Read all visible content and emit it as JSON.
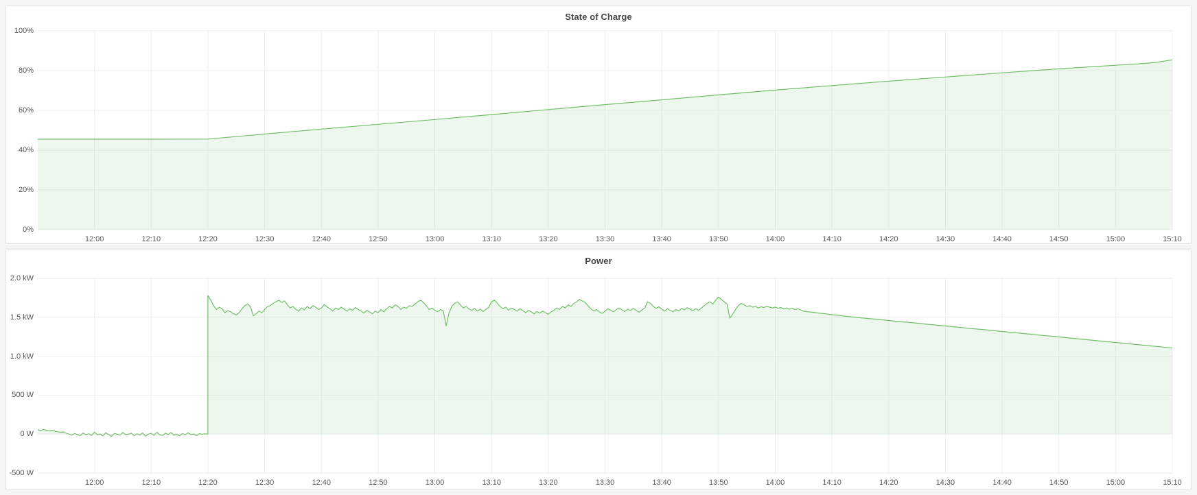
{
  "colors": {
    "page_background": "#f4f5f5",
    "panel_background": "#ffffff",
    "panel_border": "#e0e3e8",
    "grid_line": "rgba(0,10,40,0.07)",
    "axis_text": "#55575c",
    "title_text": "#44484d",
    "series_green": "#73bf69"
  },
  "chart_data": [
    {
      "type": "area",
      "title": "State of Charge",
      "legend": "none",
      "grid": true,
      "x_domain": [
        "11:50",
        "15:10"
      ],
      "x_ticks": [
        "12:00",
        "12:10",
        "12:20",
        "12:30",
        "12:40",
        "12:50",
        "13:00",
        "13:10",
        "13:20",
        "13:30",
        "13:40",
        "13:50",
        "14:00",
        "14:10",
        "14:20",
        "14:30",
        "14:40",
        "14:50",
        "15:00",
        "15:10"
      ],
      "ylim": [
        0,
        100
      ],
      "y_ticks": [
        {
          "value": 0,
          "label": "0%"
        },
        {
          "value": 20,
          "label": "20%"
        },
        {
          "value": 40,
          "label": "40%"
        },
        {
          "value": 60,
          "label": "60%"
        },
        {
          "value": 80,
          "label": "80%"
        },
        {
          "value": 100,
          "label": "100%"
        }
      ],
      "series": [
        {
          "name": "State of Charge",
          "color": "#73bf69",
          "fill_opacity": 0.12,
          "points": [
            [
              "11:50",
              45.5
            ],
            [
              "12:00",
              45.5
            ],
            [
              "12:10",
              45.5
            ],
            [
              "12:20",
              45.6
            ],
            [
              "12:30",
              48.1
            ],
            [
              "12:40",
              50.6
            ],
            [
              "12:50",
              53.0
            ],
            [
              "13:00",
              55.4
            ],
            [
              "13:10",
              57.9
            ],
            [
              "13:20",
              60.4
            ],
            [
              "13:30",
              62.9
            ],
            [
              "13:40",
              65.3
            ],
            [
              "13:50",
              67.8
            ],
            [
              "14:00",
              70.2
            ],
            [
              "14:10",
              72.5
            ],
            [
              "14:20",
              74.7
            ],
            [
              "14:30",
              76.8
            ],
            [
              "14:40",
              78.9
            ],
            [
              "14:50",
              80.9
            ],
            [
              "15:00",
              82.7
            ],
            [
              "15:05",
              83.6
            ],
            [
              "15:07",
              84.1
            ],
            [
              "15:10",
              85.4
            ]
          ]
        }
      ]
    },
    {
      "type": "area",
      "title": "Power",
      "legend": "none",
      "grid": true,
      "x_domain": [
        "11:50",
        "15:10"
      ],
      "x_ticks": [
        "12:00",
        "12:10",
        "12:20",
        "12:30",
        "12:40",
        "12:50",
        "13:00",
        "13:10",
        "13:20",
        "13:30",
        "13:40",
        "13:50",
        "14:00",
        "14:10",
        "14:20",
        "14:30",
        "14:40",
        "14:50",
        "15:00",
        "15:10"
      ],
      "ylim": [
        -500,
        2000
      ],
      "fill_to": 0,
      "y_ticks": [
        {
          "value": -500,
          "label": "-500 W"
        },
        {
          "value": 0,
          "label": "0 W"
        },
        {
          "value": 500,
          "label": "500 W"
        },
        {
          "value": 1000,
          "label": "1.0 kW"
        },
        {
          "value": 1500,
          "label": "1.5 kW"
        },
        {
          "value": 2000,
          "label": "2.0 kW"
        }
      ],
      "series": [
        {
          "name": "Power",
          "color": "#73bf69",
          "fill_opacity": 0.12,
          "segments": [
            {
              "start": "11:50",
              "step_s": 30,
              "values": [
                55,
                48,
                58,
                52,
                44,
                50,
                38,
                30,
                24,
                28,
                12,
                0,
                -12,
                8,
                -6,
                -20,
                14,
                -8,
                4,
                -18,
                26,
                -10,
                2,
                -24,
                18,
                -4,
                -30,
                8,
                0,
                -14,
                22,
                -8,
                -2,
                12,
                -22,
                4,
                -12,
                16,
                -28,
                0,
                8,
                -16,
                24,
                -8,
                -18,
                12,
                -4,
                20,
                -14,
                0,
                -24,
                8,
                -10,
                18,
                -6,
                2,
                -20,
                6,
                -2,
                4,
                0
              ]
            },
            {
              "start": "12:20",
              "step_s": 30,
              "values": [
                1780,
                1720,
                1650,
                1600,
                1630,
                1610,
                1560,
                1585,
                1570,
                1545,
                1530,
                1560,
                1610,
                1650,
                1670,
                1640,
                1520,
                1545,
                1580,
                1560,
                1600,
                1640,
                1650,
                1680,
                1700,
                1720,
                1690,
                1710,
                1660,
                1620,
                1640,
                1600,
                1580,
                1620,
                1595,
                1640,
                1610,
                1650,
                1630,
                1600,
                1620,
                1665,
                1635,
                1610,
                1580,
                1620,
                1600,
                1630,
                1605,
                1580,
                1610,
                1590,
                1625,
                1600,
                1580,
                1555,
                1590,
                1570,
                1545,
                1580,
                1560,
                1600,
                1570,
                1610,
                1640,
                1620,
                1660,
                1640,
                1600,
                1630,
                1615,
                1650,
                1640,
                1670,
                1700,
                1720,
                1690,
                1650,
                1600,
                1620,
                1590,
                1570,
                1600,
                1580,
                1390,
                1560,
                1640,
                1680,
                1700,
                1660,
                1620,
                1640,
                1610,
                1590,
                1615,
                1580,
                1605,
                1575,
                1600,
                1630,
                1700,
                1720,
                1680,
                1640,
                1610,
                1630,
                1590,
                1620,
                1600,
                1580,
                1610,
                1585,
                1560,
                1590,
                1570,
                1545,
                1575,
                1555,
                1580,
                1560,
                1540,
                1570,
                1590,
                1620,
                1600,
                1640,
                1620,
                1660,
                1640,
                1680,
                1700,
                1730,
                1710,
                1690,
                1650,
                1610,
                1580,
                1600,
                1570,
                1550,
                1580,
                1610,
                1590,
                1570,
                1600,
                1620,
                1595,
                1575,
                1605,
                1585,
                1615,
                1590,
                1565,
                1595,
                1620,
                1700,
                1680,
                1640,
                1615,
                1635,
                1605,
                1580,
                1610,
                1590,
                1570,
                1600,
                1580,
                1615,
                1595,
                1625,
                1605,
                1585,
                1610,
                1590,
                1620,
                1650,
                1680,
                1700,
                1670,
                1720,
                1760,
                1730,
                1700,
                1670,
                1490,
                1540,
                1600,
                1650,
                1680,
                1660,
                1640,
                1650,
                1630,
                1640,
                1620,
                1635,
                1625,
                1640,
                1630,
                1620,
                1630,
                1615,
                1625,
                1610,
                1620,
                1605,
                1615,
                1600,
                1610,
                1595
              ]
            },
            {
              "start": "14:05",
              "step_s": 150,
              "values": [
                1578,
                1556,
                1534,
                1512,
                1494,
                1477,
                1459,
                1441,
                1424,
                1406,
                1389,
                1371,
                1353,
                1336,
                1318,
                1301,
                1283,
                1265,
                1248,
                1230,
                1212,
                1194,
                1177,
                1159,
                1141,
                1124,
                1105
              ]
            }
          ]
        }
      ]
    }
  ]
}
